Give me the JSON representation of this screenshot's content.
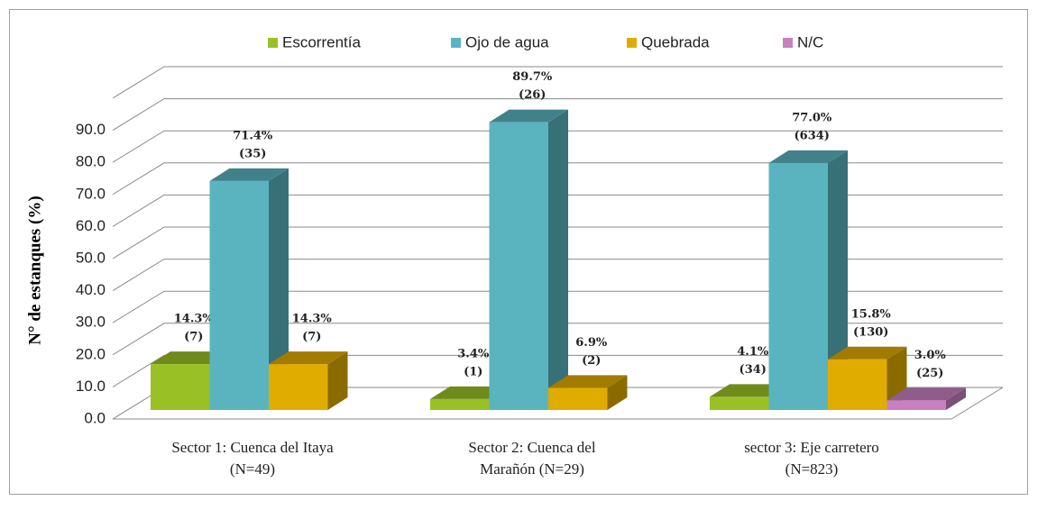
{
  "chart_data": {
    "type": "bar3d",
    "y_label": "N° de estanques (%)",
    "categories": [
      [
        "Sector 1: Cuenca del Itaya",
        "(N=49)"
      ],
      [
        "Sector 2: Cuenca del",
        "Marañón (N=29)"
      ],
      [
        "sector 3: Eje carretero",
        "(N=823)"
      ]
    ],
    "series": [
      {
        "name": "Escorrentía",
        "color": "#99c125",
        "values": [
          14.3,
          3.4,
          4.1
        ],
        "value_labels": [
          "14.3%",
          "3.4%",
          "4.1%"
        ],
        "counts": [
          7,
          1,
          34
        ],
        "count_labels": [
          "(7)",
          "(1)",
          "(34)"
        ]
      },
      {
        "name": "Ojo de agua",
        "color": "#5ab4c0",
        "values": [
          71.4,
          89.7,
          77.0
        ],
        "value_labels": [
          "71.4%",
          "89.7%",
          "77.0%"
        ],
        "counts": [
          35,
          26,
          634
        ],
        "count_labels": [
          "(35)",
          "(26)",
          "(634)"
        ]
      },
      {
        "name": "Quebrada",
        "color": "#e0ac00",
        "values": [
          14.3,
          6.9,
          15.8
        ],
        "value_labels": [
          "14.3%",
          "6.9%",
          "15.8%"
        ],
        "counts": [
          7,
          2,
          130
        ],
        "count_labels": [
          "(7)",
          "(2)",
          "(130)"
        ]
      },
      {
        "name": "N/C",
        "color": "#c880c0",
        "values": [
          null,
          null,
          3.0
        ],
        "value_labels": [
          null,
          null,
          "3.0%"
        ],
        "counts": [
          null,
          null,
          25
        ],
        "count_labels": [
          null,
          null,
          "(25)"
        ]
      }
    ],
    "ylim": [
      0,
      100
    ],
    "yticks": [
      {
        "value": 0,
        "label": "0.0"
      },
      {
        "value": 10,
        "label": "10.0"
      },
      {
        "value": 20,
        "label": "20.0"
      },
      {
        "value": 30,
        "label": "30.0"
      },
      {
        "value": 40,
        "label": "40.0"
      },
      {
        "value": 50,
        "label": "50.0"
      },
      {
        "value": 60,
        "label": "60.0"
      },
      {
        "value": 70,
        "label": "70.0"
      },
      {
        "value": 80,
        "label": "80.0"
      },
      {
        "value": 90,
        "label": "90.0"
      }
    ],
    "grid": true,
    "legend": "top"
  }
}
